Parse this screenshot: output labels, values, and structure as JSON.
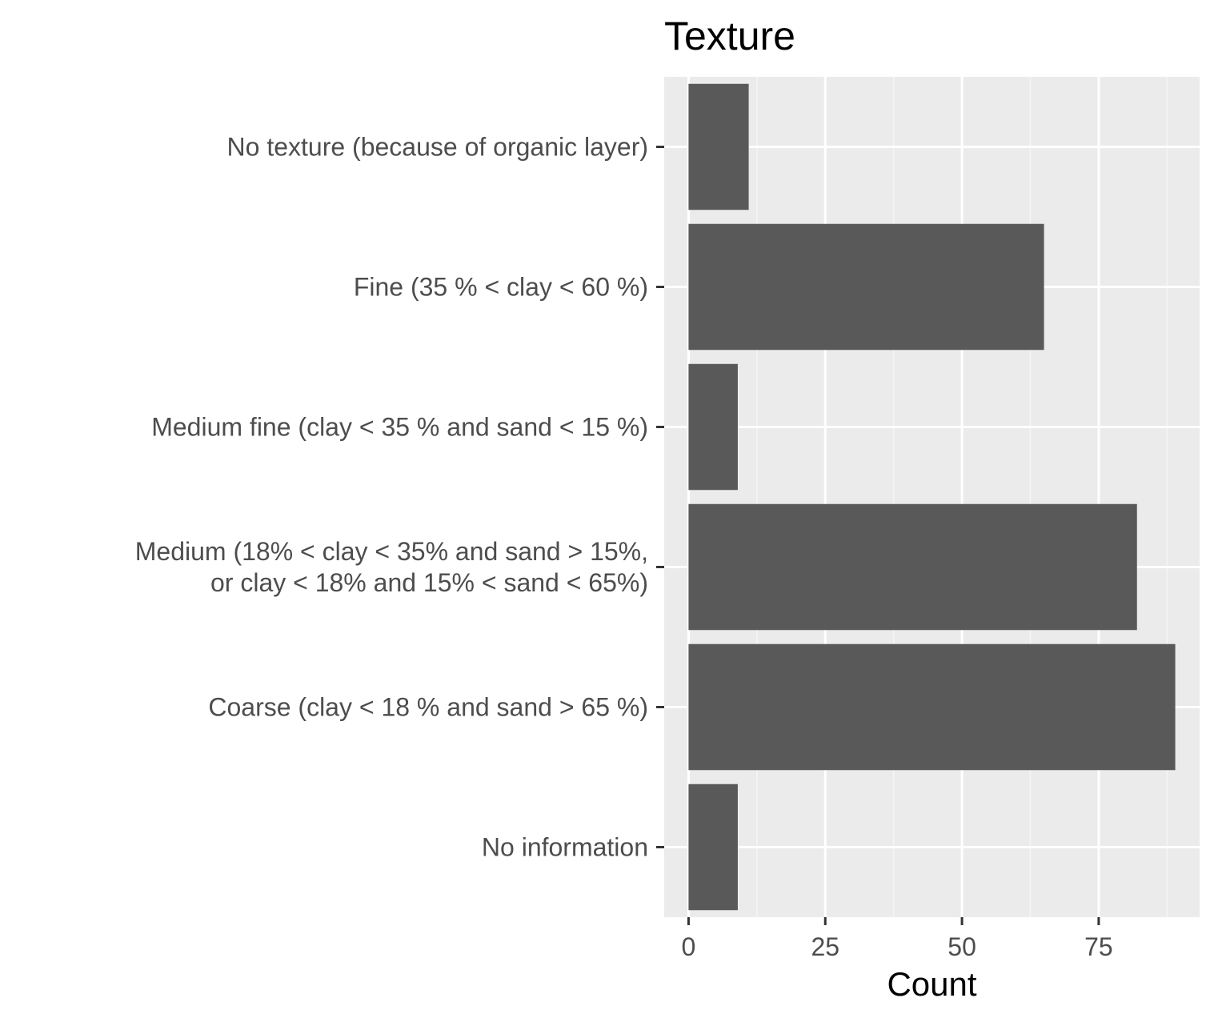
{
  "chart_data": {
    "type": "bar",
    "orientation": "horizontal",
    "title": "Texture",
    "xlabel": "Count",
    "ylabel": "",
    "categories": [
      [
        "No texture (because of organic layer)"
      ],
      [
        "Fine (35 % < clay < 60 %)"
      ],
      [
        "Medium fine (clay < 35 % and sand < 15 %)"
      ],
      [
        "Medium (18% < clay < 35% and sand > 15%,",
        "or clay < 18% and 15% < sand < 65%)"
      ],
      [
        "Coarse (clay < 18 % and sand > 65 %)"
      ],
      [
        "No information"
      ]
    ],
    "values": [
      11,
      65,
      9,
      82,
      89,
      9
    ],
    "xlim": [
      -4.45,
      93.45
    ],
    "x_ticks": [
      0,
      25,
      50,
      75
    ],
    "x_tick_labels": [
      "0",
      "25",
      "50",
      "75"
    ],
    "x_minor_ticks": [
      12.5,
      37.5,
      62.5,
      87.5
    ],
    "grid": true,
    "legend": "none",
    "colors": {
      "bar": "#595959",
      "panel_background": "#ebebeb",
      "grid_major": "#ffffff",
      "grid_minor": "#f5f5f5",
      "axis_tick": "#333333"
    }
  }
}
